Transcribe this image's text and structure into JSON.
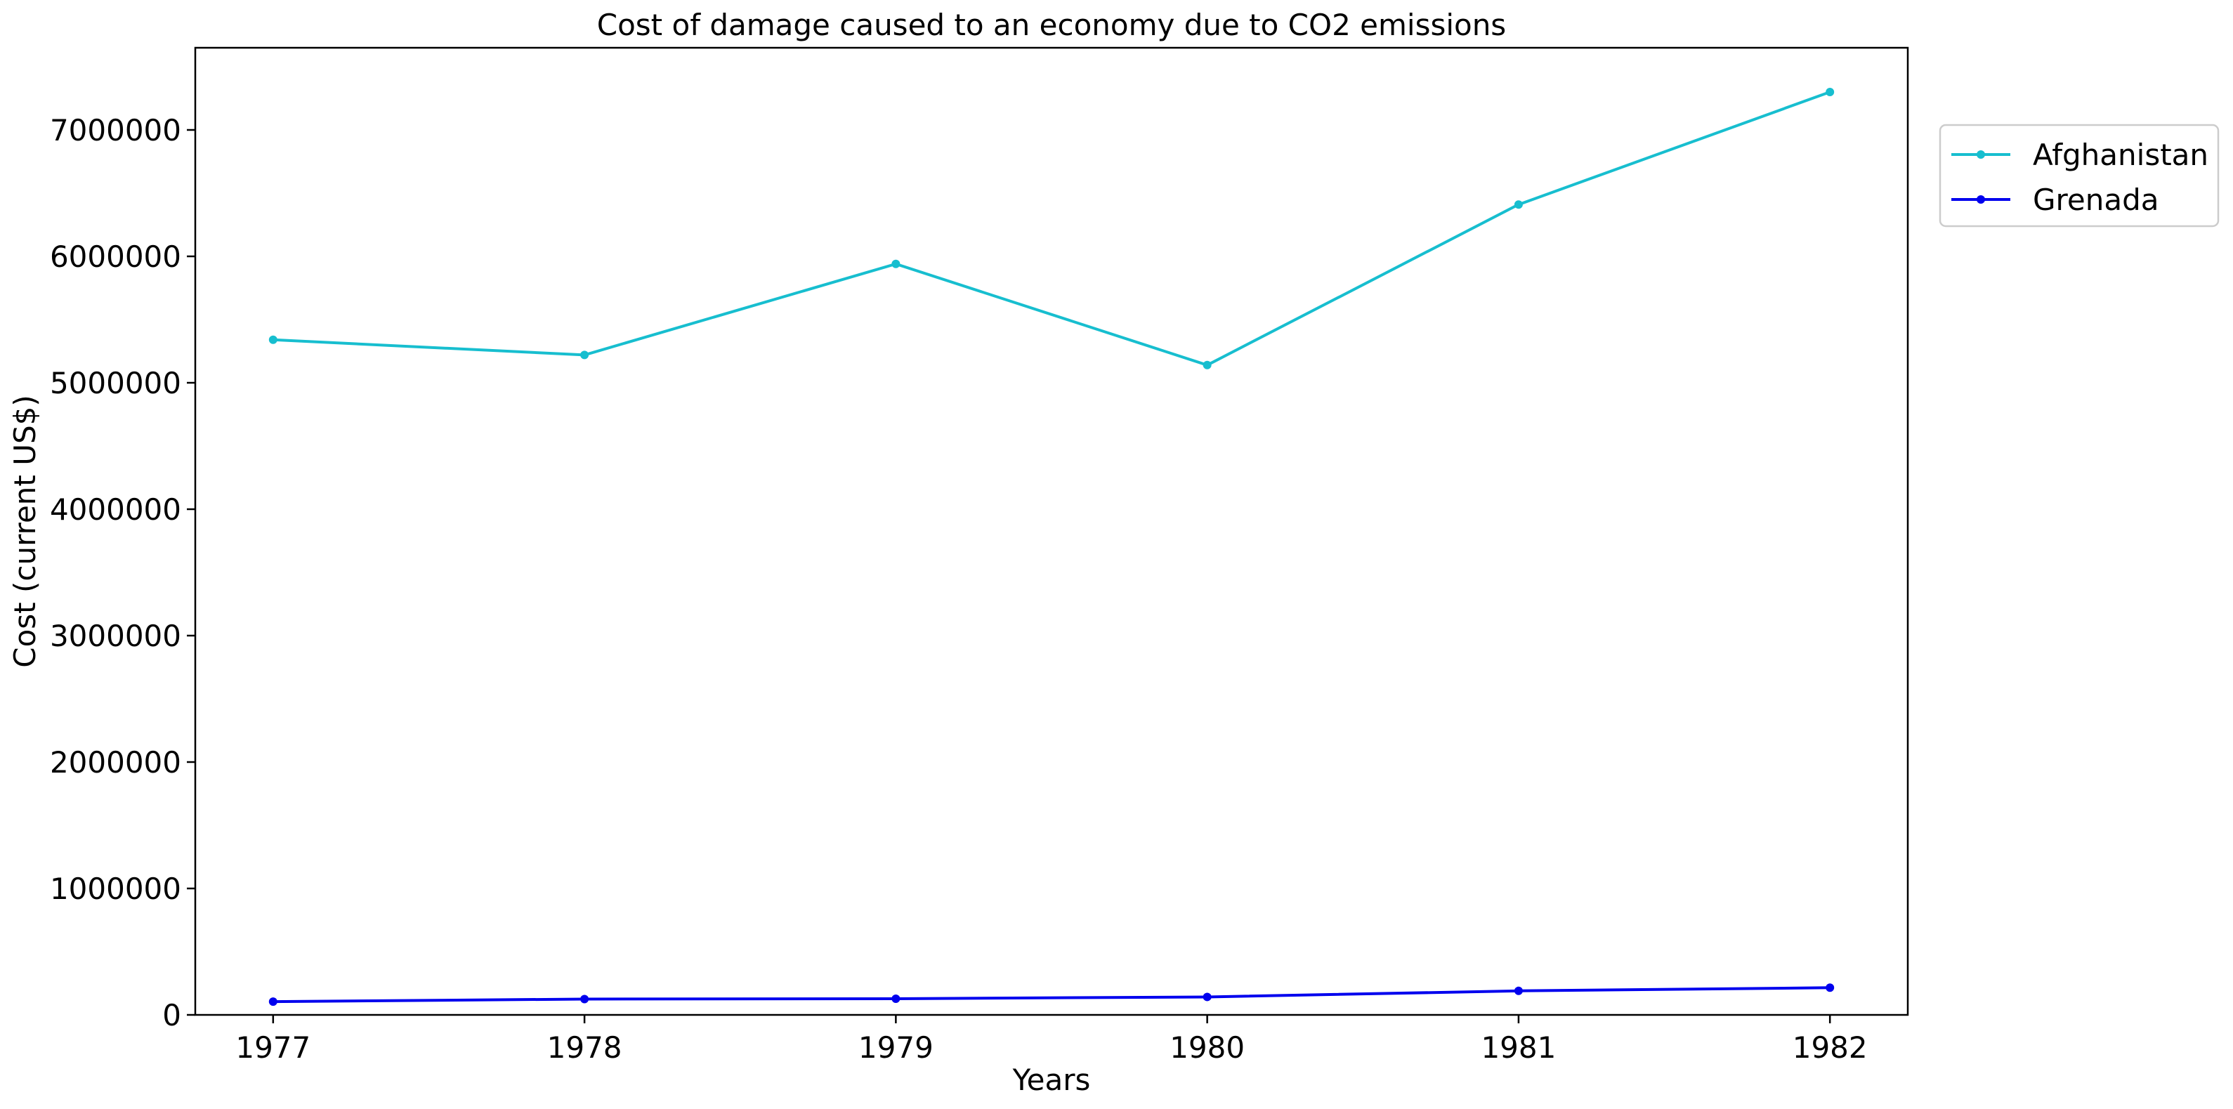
{
  "chart_data": {
    "type": "line",
    "title": "Cost of damage caused to an economy due to CO2 emissions",
    "xlabel": "Years",
    "ylabel": "Cost (current US$)",
    "x": [
      1977,
      1978,
      1979,
      1980,
      1981,
      1982
    ],
    "x_tick_labels": [
      "1977",
      "1978",
      "1979",
      "1980",
      "1981",
      "1982"
    ],
    "ylim": [
      0,
      7650000
    ],
    "y_ticks": [
      0,
      1000000,
      2000000,
      3000000,
      4000000,
      5000000,
      6000000,
      7000000
    ],
    "y_tick_labels": [
      "0",
      "1000000",
      "2000000",
      "3000000",
      "4000000",
      "5000000",
      "6000000",
      "7000000"
    ],
    "grid": false,
    "legend_position": "top-right, outside plot area",
    "series": [
      {
        "name": "Afghanistan",
        "color": "#17becf",
        "values": [
          5340000,
          5220000,
          5940000,
          5140000,
          6410000,
          7300000
        ]
      },
      {
        "name": "Grenada",
        "color": "#0000ee",
        "values": [
          105000,
          125000,
          128000,
          142000,
          190000,
          215000
        ]
      }
    ]
  }
}
